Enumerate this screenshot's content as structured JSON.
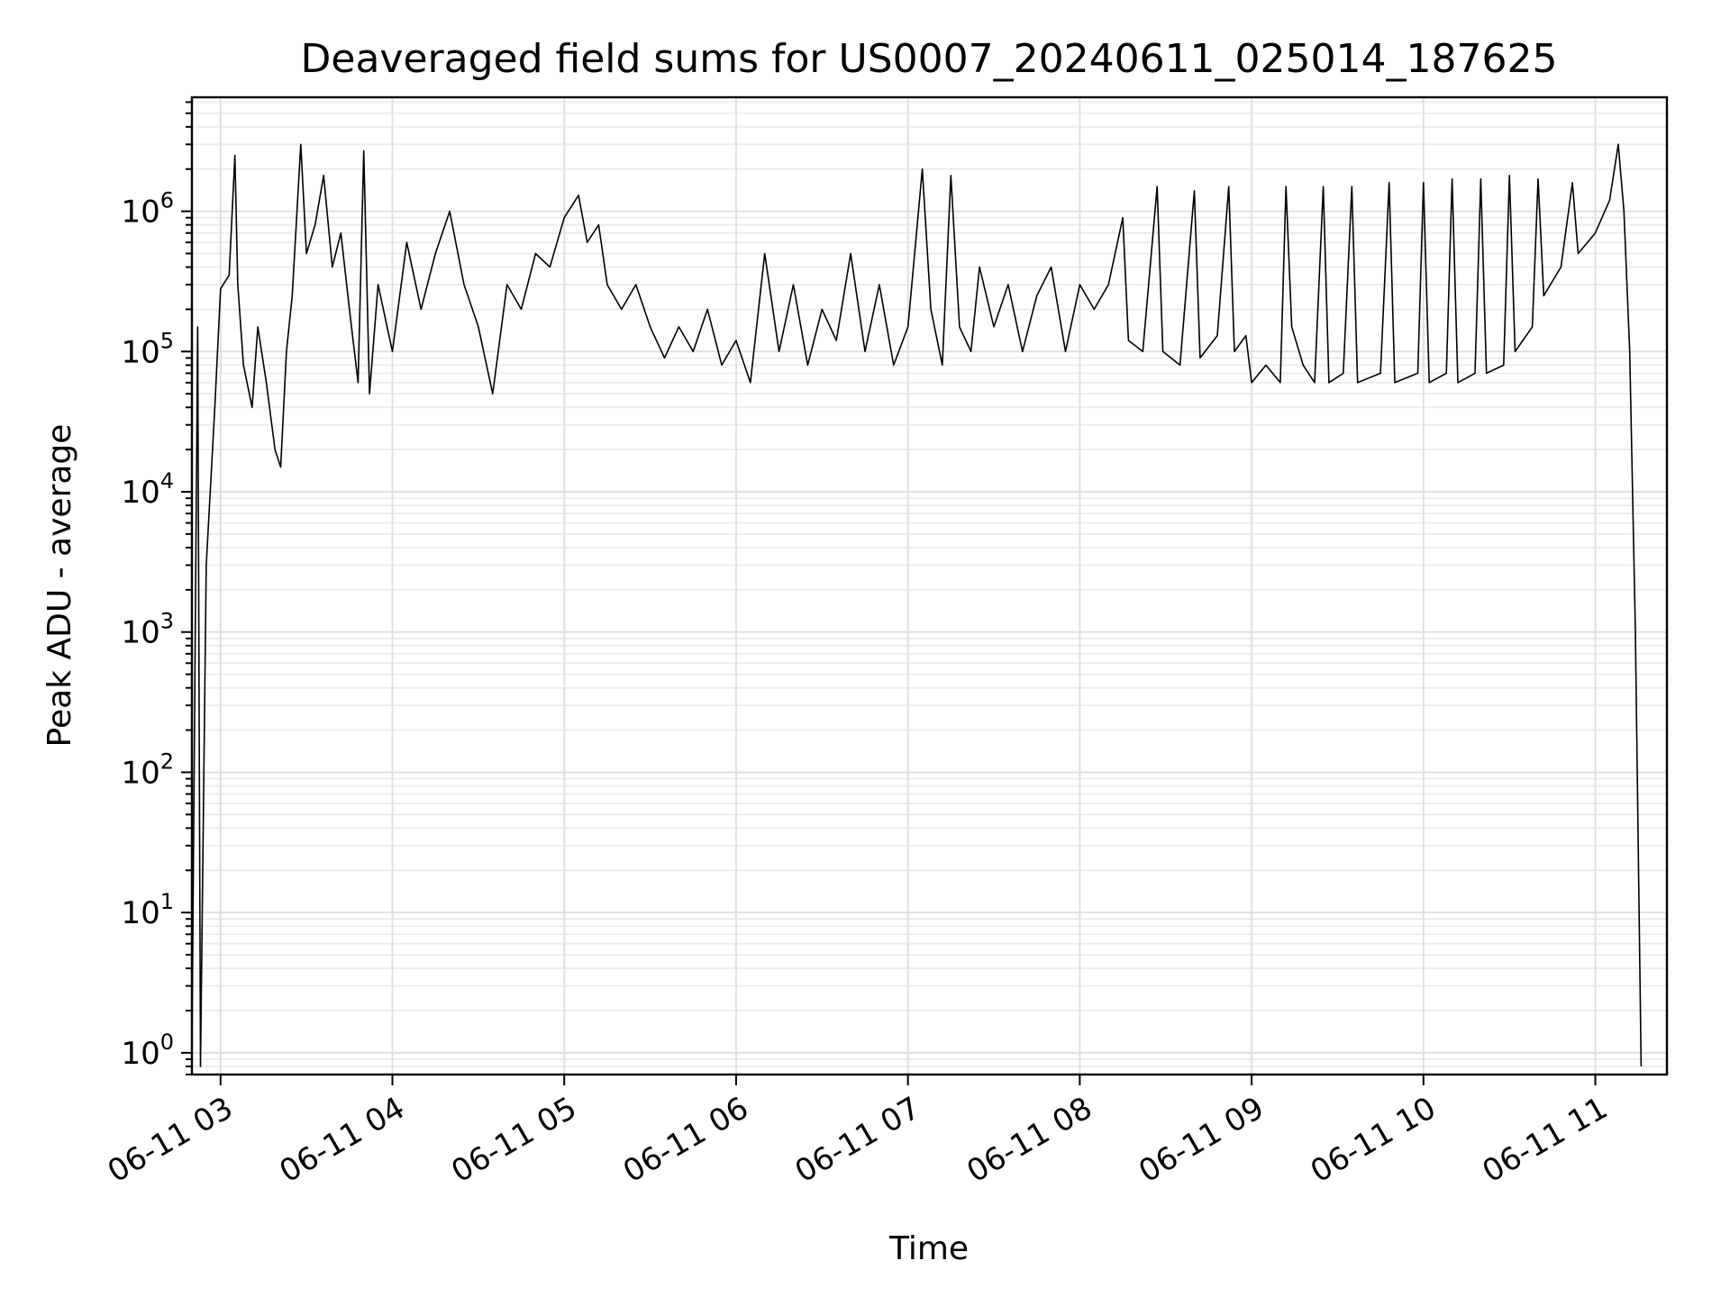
{
  "chart_data": {
    "type": "line",
    "title": "Deaveraged field sums for US0007_20240611_025014_187625",
    "xlabel": "Time",
    "ylabel": "Peak ADU - average",
    "y_scale": "log",
    "ylim": [
      0.7,
      6500000
    ],
    "xlim": [
      "2024-06-11T02:50:00",
      "2024-06-11T11:25:00"
    ],
    "grid": "both",
    "x_ticks": [
      {
        "value": "2024-06-11T03:00",
        "label": "06-11 03"
      },
      {
        "value": "2024-06-11T04:00",
        "label": "06-11 04"
      },
      {
        "value": "2024-06-11T05:00",
        "label": "06-11 05"
      },
      {
        "value": "2024-06-11T06:00",
        "label": "06-11 06"
      },
      {
        "value": "2024-06-11T07:00",
        "label": "06-11 07"
      },
      {
        "value": "2024-06-11T08:00",
        "label": "06-11 08"
      },
      {
        "value": "2024-06-11T09:00",
        "label": "06-11 09"
      },
      {
        "value": "2024-06-11T10:00",
        "label": "06-11 10"
      },
      {
        "value": "2024-06-11T11:00",
        "label": "06-11 11"
      }
    ],
    "y_ticks": [
      {
        "value": 1,
        "base": "10",
        "exp": "0"
      },
      {
        "value": 10,
        "base": "10",
        "exp": "1"
      },
      {
        "value": 100,
        "base": "10",
        "exp": "2"
      },
      {
        "value": 1000,
        "base": "10",
        "exp": "3"
      },
      {
        "value": 10000,
        "base": "10",
        "exp": "4"
      },
      {
        "value": 100000,
        "base": "10",
        "exp": "5"
      },
      {
        "value": 1000000,
        "base": "10",
        "exp": "6"
      }
    ],
    "series": [
      {
        "color": "#000000",
        "points": [
          [
            "2024-06-11T02:50",
            1
          ],
          [
            "2024-06-11T02:52",
            150000
          ],
          [
            "2024-06-11T02:53",
            0.8
          ],
          [
            "2024-06-11T02:55",
            3000
          ],
          [
            "2024-06-11T02:58",
            40000
          ],
          [
            "2024-06-11T03:00",
            280000
          ],
          [
            "2024-06-11T03:03",
            350000
          ],
          [
            "2024-06-11T03:05",
            2500000
          ],
          [
            "2024-06-11T03:06",
            300000
          ],
          [
            "2024-06-11T03:08",
            80000
          ],
          [
            "2024-06-11T03:11",
            40000
          ],
          [
            "2024-06-11T03:13",
            150000
          ],
          [
            "2024-06-11T03:16",
            60000
          ],
          [
            "2024-06-11T03:19",
            20000
          ],
          [
            "2024-06-11T03:21",
            15000
          ],
          [
            "2024-06-11T03:23",
            100000
          ],
          [
            "2024-06-11T03:25",
            250000
          ],
          [
            "2024-06-11T03:28",
            3000000
          ],
          [
            "2024-06-11T03:30",
            500000
          ],
          [
            "2024-06-11T03:33",
            800000
          ],
          [
            "2024-06-11T03:36",
            1800000
          ],
          [
            "2024-06-11T03:39",
            400000
          ],
          [
            "2024-06-11T03:42",
            700000
          ],
          [
            "2024-06-11T03:45",
            200000
          ],
          [
            "2024-06-11T03:48",
            60000
          ],
          [
            "2024-06-11T03:50",
            2700000
          ],
          [
            "2024-06-11T03:52",
            50000
          ],
          [
            "2024-06-11T03:55",
            300000
          ],
          [
            "2024-06-11T04:00",
            100000
          ],
          [
            "2024-06-11T04:05",
            600000
          ],
          [
            "2024-06-11T04:10",
            200000
          ],
          [
            "2024-06-11T04:15",
            500000
          ],
          [
            "2024-06-11T04:20",
            1000000
          ],
          [
            "2024-06-11T04:25",
            300000
          ],
          [
            "2024-06-11T04:30",
            150000
          ],
          [
            "2024-06-11T04:35",
            50000
          ],
          [
            "2024-06-11T04:40",
            300000
          ],
          [
            "2024-06-11T04:45",
            200000
          ],
          [
            "2024-06-11T04:50",
            500000
          ],
          [
            "2024-06-11T04:55",
            400000
          ],
          [
            "2024-06-11T05:00",
            900000
          ],
          [
            "2024-06-11T05:05",
            1300000
          ],
          [
            "2024-06-11T05:08",
            600000
          ],
          [
            "2024-06-11T05:12",
            800000
          ],
          [
            "2024-06-11T05:15",
            300000
          ],
          [
            "2024-06-11T05:20",
            200000
          ],
          [
            "2024-06-11T05:25",
            300000
          ],
          [
            "2024-06-11T05:30",
            150000
          ],
          [
            "2024-06-11T05:35",
            90000
          ],
          [
            "2024-06-11T05:40",
            150000
          ],
          [
            "2024-06-11T05:45",
            100000
          ],
          [
            "2024-06-11T05:50",
            200000
          ],
          [
            "2024-06-11T05:55",
            80000
          ],
          [
            "2024-06-11T06:00",
            120000
          ],
          [
            "2024-06-11T06:05",
            60000
          ],
          [
            "2024-06-11T06:10",
            500000
          ],
          [
            "2024-06-11T06:15",
            100000
          ],
          [
            "2024-06-11T06:20",
            300000
          ],
          [
            "2024-06-11T06:25",
            80000
          ],
          [
            "2024-06-11T06:30",
            200000
          ],
          [
            "2024-06-11T06:35",
            120000
          ],
          [
            "2024-06-11T06:40",
            500000
          ],
          [
            "2024-06-11T06:45",
            100000
          ],
          [
            "2024-06-11T06:50",
            300000
          ],
          [
            "2024-06-11T06:55",
            80000
          ],
          [
            "2024-06-11T07:00",
            150000
          ],
          [
            "2024-06-11T07:05",
            2000000
          ],
          [
            "2024-06-11T07:08",
            200000
          ],
          [
            "2024-06-11T07:12",
            80000
          ],
          [
            "2024-06-11T07:15",
            1800000
          ],
          [
            "2024-06-11T07:18",
            150000
          ],
          [
            "2024-06-11T07:22",
            100000
          ],
          [
            "2024-06-11T07:25",
            400000
          ],
          [
            "2024-06-11T07:30",
            150000
          ],
          [
            "2024-06-11T07:35",
            300000
          ],
          [
            "2024-06-11T07:40",
            100000
          ],
          [
            "2024-06-11T07:45",
            250000
          ],
          [
            "2024-06-11T07:50",
            400000
          ],
          [
            "2024-06-11T07:55",
            100000
          ],
          [
            "2024-06-11T08:00",
            300000
          ],
          [
            "2024-06-11T08:05",
            200000
          ],
          [
            "2024-06-11T08:10",
            300000
          ],
          [
            "2024-06-11T08:15",
            900000
          ],
          [
            "2024-06-11T08:17",
            120000
          ],
          [
            "2024-06-11T08:22",
            100000
          ],
          [
            "2024-06-11T08:27",
            1500000
          ],
          [
            "2024-06-11T08:29",
            100000
          ],
          [
            "2024-06-11T08:35",
            80000
          ],
          [
            "2024-06-11T08:40",
            1400000
          ],
          [
            "2024-06-11T08:42",
            90000
          ],
          [
            "2024-06-11T08:48",
            130000
          ],
          [
            "2024-06-11T08:52",
            1500000
          ],
          [
            "2024-06-11T08:54",
            100000
          ],
          [
            "2024-06-11T08:58",
            130000
          ],
          [
            "2024-06-11T09:00",
            60000
          ],
          [
            "2024-06-11T09:05",
            80000
          ],
          [
            "2024-06-11T09:10",
            60000
          ],
          [
            "2024-06-11T09:12",
            1500000
          ],
          [
            "2024-06-11T09:14",
            150000
          ],
          [
            "2024-06-11T09:18",
            80000
          ],
          [
            "2024-06-11T09:22",
            60000
          ],
          [
            "2024-06-11T09:25",
            1500000
          ],
          [
            "2024-06-11T09:27",
            60000
          ],
          [
            "2024-06-11T09:32",
            70000
          ],
          [
            "2024-06-11T09:35",
            1500000
          ],
          [
            "2024-06-11T09:37",
            60000
          ],
          [
            "2024-06-11T09:45",
            70000
          ],
          [
            "2024-06-11T09:48",
            1600000
          ],
          [
            "2024-06-11T09:50",
            60000
          ],
          [
            "2024-06-11T09:58",
            70000
          ],
          [
            "2024-06-11T10:00",
            1600000
          ],
          [
            "2024-06-11T10:02",
            60000
          ],
          [
            "2024-06-11T10:08",
            70000
          ],
          [
            "2024-06-11T10:10",
            1700000
          ],
          [
            "2024-06-11T10:12",
            60000
          ],
          [
            "2024-06-11T10:18",
            70000
          ],
          [
            "2024-06-11T10:20",
            1700000
          ],
          [
            "2024-06-11T10:22",
            70000
          ],
          [
            "2024-06-11T10:28",
            80000
          ],
          [
            "2024-06-11T10:30",
            1800000
          ],
          [
            "2024-06-11T10:32",
            100000
          ],
          [
            "2024-06-11T10:38",
            150000
          ],
          [
            "2024-06-11T10:40",
            1700000
          ],
          [
            "2024-06-11T10:42",
            250000
          ],
          [
            "2024-06-11T10:48",
            400000
          ],
          [
            "2024-06-11T10:52",
            1600000
          ],
          [
            "2024-06-11T10:54",
            500000
          ],
          [
            "2024-06-11T11:00",
            700000
          ],
          [
            "2024-06-11T11:05",
            1200000
          ],
          [
            "2024-06-11T11:08",
            3000000
          ],
          [
            "2024-06-11T11:10",
            1000000
          ],
          [
            "2024-06-11T11:12",
            100000
          ],
          [
            "2024-06-11T11:14",
            1000
          ],
          [
            "2024-06-11T11:16",
            0.8
          ]
        ]
      }
    ]
  }
}
